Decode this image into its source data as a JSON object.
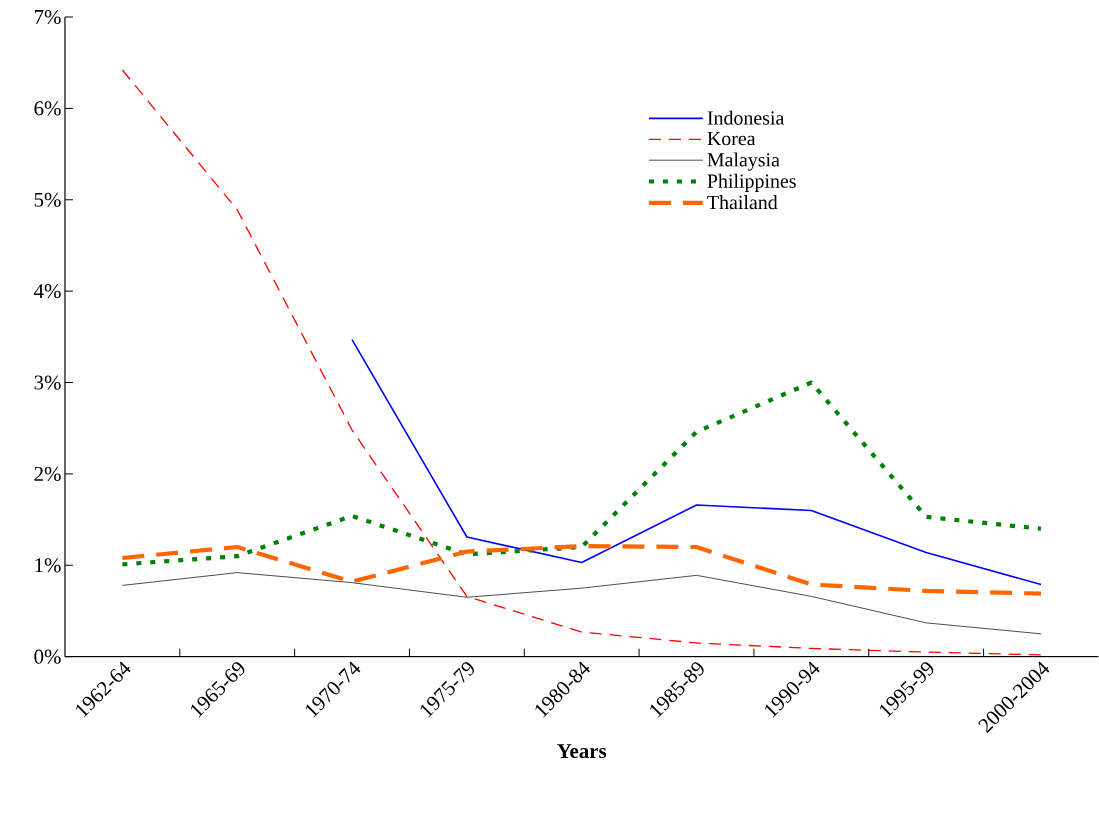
{
  "chart_data": {
    "type": "line",
    "xlabel": "Years",
    "categories": [
      "1962-64",
      "1965-69",
      "1970-74",
      "1975-79",
      "1980-84",
      "1985-89",
      "1990-94",
      "1995-99",
      "2000-2004"
    ],
    "series": [
      {
        "name": "Indonesia",
        "color": "#0000ff",
        "line_style": "solid",
        "values": [
          null,
          null,
          3.47,
          1.31,
          1.03,
          1.66,
          1.6,
          1.14,
          0.79
        ]
      },
      {
        "name": "Korea",
        "color": "#ff0000",
        "line_style": "dashed",
        "values": [
          6.42,
          4.89,
          2.48,
          0.66,
          0.27,
          0.15,
          0.09,
          0.05,
          0.02
        ]
      },
      {
        "name": "Malaysia",
        "color": "#000000",
        "line_style": "solid",
        "values": [
          0.78,
          0.92,
          0.81,
          0.65,
          0.75,
          0.89,
          0.66,
          0.37,
          0.25
        ]
      },
      {
        "name": "Philippines",
        "color": "#008000",
        "line_style": "dotted",
        "values": [
          1.01,
          1.1,
          1.54,
          1.12,
          1.2,
          2.46,
          3.0,
          1.53,
          1.4
        ]
      },
      {
        "name": "Thailand",
        "color": "#ff6600",
        "line_style": "dashed",
        "values": [
          1.08,
          1.2,
          0.82,
          1.15,
          1.21,
          1.2,
          0.79,
          0.72,
          0.69
        ]
      }
    ],
    "ylim": [
      0,
      7
    ],
    "yticks": [
      {
        "value": 0,
        "label": "0%"
      },
      {
        "value": 1,
        "label": "1%"
      },
      {
        "value": 2,
        "label": "2%"
      },
      {
        "value": 3,
        "label": "3%"
      },
      {
        "value": 4,
        "label": "4%"
      },
      {
        "value": 5,
        "label": "5%"
      },
      {
        "value": 6,
        "label": "6%"
      },
      {
        "value": 7,
        "label": "7%"
      }
    ],
    "grid": false,
    "legend": "top right",
    "marker": "none"
  }
}
